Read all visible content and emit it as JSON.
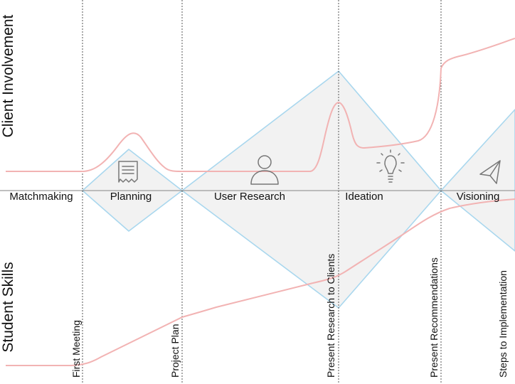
{
  "axes": {
    "top_label": "Client Involvement",
    "bottom_label": "Student Skills"
  },
  "phases": [
    {
      "label": "Matchmaking",
      "icon": null
    },
    {
      "label": "Planning",
      "icon": "document-icon"
    },
    {
      "label": "User Research",
      "icon": "person-icon"
    },
    {
      "label": "Ideation",
      "icon": "lightbulb-icon"
    },
    {
      "label": "Visioning",
      "icon": "paper-plane-icon"
    }
  ],
  "milestones": [
    {
      "label": "First Meeting"
    },
    {
      "label": "Project Plan"
    },
    {
      "label": "Present Research to Clients"
    },
    {
      "label": "Present Recommendations"
    },
    {
      "label": "Steps to Implementation"
    }
  ],
  "colors": {
    "diamond_stroke": "#a9d7ee",
    "diamond_fill": "#f2f2f2",
    "curve": "#f2b3b3",
    "divider": "#555555",
    "axis_line": "#9a9a9a",
    "icon": "#777777"
  }
}
